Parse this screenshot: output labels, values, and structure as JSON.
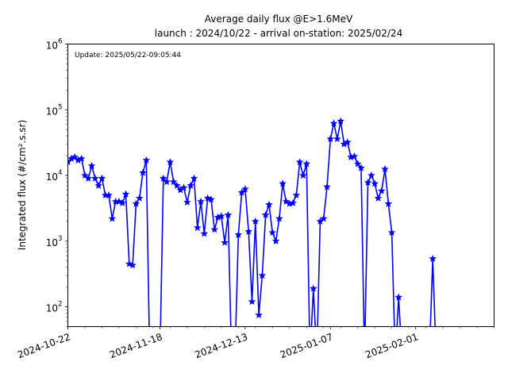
{
  "chart_data": {
    "type": "line",
    "title": "Average daily flux @E>1.6MeV",
    "subtitle": "launch : 2024/10/22 - arrival on-station: 2025/02/24",
    "annotation": "Update: 2025/05/22-09:05:44",
    "ylabel": "Integrated flux (#/cm².s.sr)",
    "xlabel": "",
    "y_scale": "log",
    "ylim": [
      50,
      1000000
    ],
    "xlim": [
      "2024-10-22",
      "2025-02-24"
    ],
    "x_ticks": [
      "2024-10-22",
      "2024-11-18",
      "2024-12-13",
      "2025-01-07",
      "2025-02-01"
    ],
    "y_ticks": [
      {
        "value": 100,
        "base": "10",
        "exp": "2"
      },
      {
        "value": 1000,
        "base": "10",
        "exp": "3"
      },
      {
        "value": 10000,
        "base": "10",
        "exp": "4"
      },
      {
        "value": 100000,
        "base": "10",
        "exp": "5"
      },
      {
        "value": 1000000,
        "base": "10",
        "exp": "6"
      }
    ],
    "grid": false,
    "line_color": "#0000ff",
    "marker": "star",
    "series": [
      {
        "name": "",
        "points": [
          {
            "x": "2024-10-22",
            "y": 16000
          },
          {
            "x": "2024-10-23",
            "y": 18000
          },
          {
            "x": "2024-10-24",
            "y": 19000
          },
          {
            "x": "2024-10-25",
            "y": 17000
          },
          {
            "x": "2024-10-26",
            "y": 18000
          },
          {
            "x": "2024-10-27",
            "y": 10000
          },
          {
            "x": "2024-10-28",
            "y": 9000
          },
          {
            "x": "2024-10-29",
            "y": 14000
          },
          {
            "x": "2024-10-30",
            "y": 9000
          },
          {
            "x": "2024-10-31",
            "y": 7000
          },
          {
            "x": "2024-11-01",
            "y": 9000
          },
          {
            "x": "2024-11-02",
            "y": 5000
          },
          {
            "x": "2024-11-03",
            "y": 5000
          },
          {
            "x": "2024-11-04",
            "y": 2200
          },
          {
            "x": "2024-11-05",
            "y": 4000
          },
          {
            "x": "2024-11-06",
            "y": 4000
          },
          {
            "x": "2024-11-07",
            "y": 3800
          },
          {
            "x": "2024-11-08",
            "y": 5200
          },
          {
            "x": "2024-11-09",
            "y": 450
          },
          {
            "x": "2024-11-10",
            "y": 430
          },
          {
            "x": "2024-11-11",
            "y": 3700
          },
          {
            "x": "2024-11-12",
            "y": 4500
          },
          {
            "x": "2024-11-13",
            "y": 11000
          },
          {
            "x": "2024-11-14",
            "y": 17000
          },
          {
            "x": "2024-11-15",
            "y": null
          },
          {
            "x": "2024-11-16",
            "y": null
          },
          {
            "x": "2024-11-17",
            "y": null
          },
          {
            "x": "2024-11-18",
            "y": null
          },
          {
            "x": "2024-11-19",
            "y": 9000
          },
          {
            "x": "2024-11-20",
            "y": 8000
          },
          {
            "x": "2024-11-21",
            "y": 16000
          },
          {
            "x": "2024-11-22",
            "y": 8000
          },
          {
            "x": "2024-11-23",
            "y": 7000
          },
          {
            "x": "2024-11-24",
            "y": 6000
          },
          {
            "x": "2024-11-25",
            "y": 6500
          },
          {
            "x": "2024-11-26",
            "y": 3900
          },
          {
            "x": "2024-11-27",
            "y": 7000
          },
          {
            "x": "2024-11-28",
            "y": 9000
          },
          {
            "x": "2024-11-29",
            "y": 1600
          },
          {
            "x": "2024-11-30",
            "y": 4000
          },
          {
            "x": "2024-12-01",
            "y": 1300
          },
          {
            "x": "2024-12-02",
            "y": 4500
          },
          {
            "x": "2024-12-03",
            "y": 4300
          },
          {
            "x": "2024-12-04",
            "y": 1500
          },
          {
            "x": "2024-12-05",
            "y": 2300
          },
          {
            "x": "2024-12-06",
            "y": 2400
          },
          {
            "x": "2024-12-07",
            "y": 950
          },
          {
            "x": "2024-12-08",
            "y": 2500
          },
          {
            "x": "2024-12-09",
            "y": null
          },
          {
            "x": "2024-12-10",
            "y": null
          },
          {
            "x": "2024-12-11",
            "y": 1250
          },
          {
            "x": "2024-12-12",
            "y": 5500
          },
          {
            "x": "2024-12-13",
            "y": 6200
          },
          {
            "x": "2024-12-14",
            "y": 1400
          },
          {
            "x": "2024-12-15",
            "y": 120
          },
          {
            "x": "2024-12-16",
            "y": 2000
          },
          {
            "x": "2024-12-17",
            "y": 75
          },
          {
            "x": "2024-12-18",
            "y": 300
          },
          {
            "x": "2024-12-19",
            "y": 2500
          },
          {
            "x": "2024-12-20",
            "y": 3600
          },
          {
            "x": "2024-12-21",
            "y": 1350
          },
          {
            "x": "2024-12-22",
            "y": 1000
          },
          {
            "x": "2024-12-23",
            "y": 2200
          },
          {
            "x": "2024-12-24",
            "y": 7500
          },
          {
            "x": "2024-12-25",
            "y": 4000
          },
          {
            "x": "2024-12-26",
            "y": 3700
          },
          {
            "x": "2024-12-27",
            "y": 3800
          },
          {
            "x": "2024-12-28",
            "y": 5000
          },
          {
            "x": "2024-12-29",
            "y": 16000
          },
          {
            "x": "2024-12-30",
            "y": 10000
          },
          {
            "x": "2024-12-31",
            "y": 15000
          },
          {
            "x": "2025-01-01",
            "y": null
          },
          {
            "x": "2025-01-02",
            "y": 190
          },
          {
            "x": "2025-01-03",
            "y": null
          },
          {
            "x": "2025-01-04",
            "y": 2000
          },
          {
            "x": "2025-01-05",
            "y": 2200
          },
          {
            "x": "2025-01-06",
            "y": 6700
          },
          {
            "x": "2025-01-07",
            "y": 36000
          },
          {
            "x": "2025-01-08",
            "y": 62000
          },
          {
            "x": "2025-01-09",
            "y": 36000
          },
          {
            "x": "2025-01-10",
            "y": 67000
          },
          {
            "x": "2025-01-11",
            "y": 30000
          },
          {
            "x": "2025-01-12",
            "y": 32000
          },
          {
            "x": "2025-01-13",
            "y": 19000
          },
          {
            "x": "2025-01-14",
            "y": 19500
          },
          {
            "x": "2025-01-15",
            "y": 15000
          },
          {
            "x": "2025-01-16",
            "y": 13000
          },
          {
            "x": "2025-01-17",
            "y": null
          },
          {
            "x": "2025-01-18",
            "y": 7800
          },
          {
            "x": "2025-01-19",
            "y": 10000
          },
          {
            "x": "2025-01-20",
            "y": 7500
          },
          {
            "x": "2025-01-21",
            "y": 4500
          },
          {
            "x": "2025-01-22",
            "y": 5800
          },
          {
            "x": "2025-01-23",
            "y": 12500
          },
          {
            "x": "2025-01-24",
            "y": 3700
          },
          {
            "x": "2025-01-25",
            "y": 1350
          },
          {
            "x": "2025-01-26",
            "y": null
          },
          {
            "x": "2025-01-27",
            "y": 140
          },
          {
            "x": "2025-01-28",
            "y": null
          },
          {
            "x": "2025-02-05",
            "y": null
          },
          {
            "x": "2025-02-06",
            "y": 540
          },
          {
            "x": "2025-02-07",
            "y": null
          }
        ]
      }
    ]
  }
}
